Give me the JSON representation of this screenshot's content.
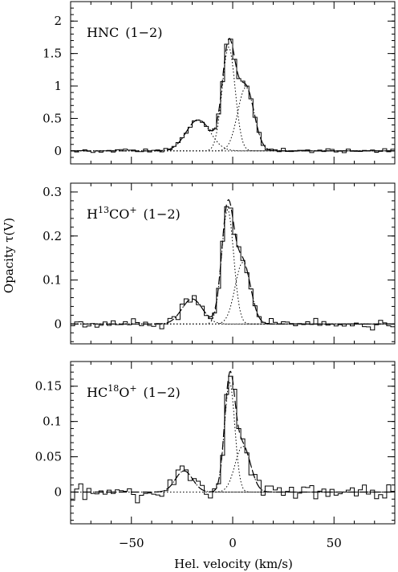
{
  "chart_data": {
    "type": "line",
    "xlabel": "Hel. velocity (km/s)",
    "ylabel": "Opacity τ(V)",
    "xlim": [
      -80,
      80
    ],
    "xticks": [
      -50,
      0,
      50
    ],
    "panels": [
      {
        "label_main": "HNC",
        "label_iso": "",
        "label_rest": "",
        "label_sup": "",
        "label_trans": "(1−2)",
        "ylim": [
          -0.2,
          2.3
        ],
        "yticks": [
          "0",
          "0.5",
          "1",
          "1.5",
          "2"
        ],
        "ytick_values": [
          0,
          0.5,
          1,
          1.5,
          2
        ],
        "components": [
          {
            "center": -17,
            "amplitude": 0.48,
            "fwhm": 14
          },
          {
            "center": -2,
            "amplitude": 1.6,
            "fwhm": 7.5
          },
          {
            "center": 6.5,
            "amplitude": 0.98,
            "fwhm": 9.5
          }
        ],
        "noise": 0.02
      },
      {
        "label_main": "H",
        "label_iso": "13",
        "label_rest": "CO",
        "label_sup": "+",
        "label_trans": "(1−2)",
        "ylim": [
          -0.045,
          0.32
        ],
        "yticks": [
          "0",
          "0.1",
          "0.2",
          "0.3"
        ],
        "ytick_values": [
          0,
          0.1,
          0.2,
          0.3
        ],
        "components": [
          {
            "center": -20,
            "amplitude": 0.057,
            "fwhm": 12
          },
          {
            "center": -2.5,
            "amplitude": 0.26,
            "fwhm": 7
          },
          {
            "center": 5,
            "amplitude": 0.14,
            "fwhm": 9
          }
        ],
        "noise": 0.007
      },
      {
        "label_main": "HC",
        "label_iso": "18",
        "label_rest": "O",
        "label_sup": "+",
        "label_trans": "(1−2)",
        "ylim": [
          -0.045,
          0.185
        ],
        "yticks": [
          "0",
          "0.05",
          "0.1",
          "0.15"
        ],
        "ytick_values": [
          0,
          0.05,
          0.1,
          0.15
        ],
        "components": [
          {
            "center": -24,
            "amplitude": 0.03,
            "fwhm": 10
          },
          {
            "center": -1.5,
            "amplitude": 0.155,
            "fwhm": 6
          },
          {
            "center": 5,
            "amplitude": 0.065,
            "fwhm": 9
          }
        ],
        "noise": 0.009
      }
    ],
    "channel_width": 2.0,
    "series": [
      {
        "style": "histogram"
      },
      {
        "style": "dashed-total-fit"
      },
      {
        "style": "dotted-components"
      }
    ]
  }
}
